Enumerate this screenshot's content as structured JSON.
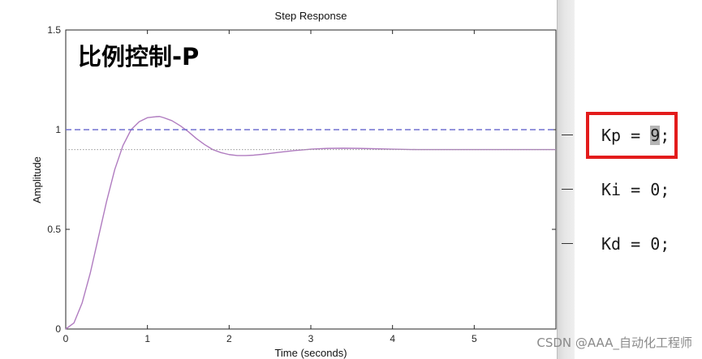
{
  "chart_data": {
    "type": "line",
    "title": "Step Response",
    "overlay_label": "比例控制-P",
    "xlabel": "Time (seconds)",
    "ylabel": "Amplitude",
    "xlim": [
      0,
      6
    ],
    "ylim": [
      0,
      1.5
    ],
    "x_ticks": [
      "0",
      "1",
      "2",
      "3",
      "4",
      "5"
    ],
    "y_ticks": [
      "0",
      "0.5",
      "1",
      "1.5"
    ],
    "grid": false,
    "series": [
      {
        "color": "#b07cc0",
        "style": "solid",
        "x": [
          0,
          0.1,
          0.2,
          0.3,
          0.4,
          0.5,
          0.6,
          0.7,
          0.8,
          0.9,
          1.0,
          1.1,
          1.15,
          1.2,
          1.3,
          1.4,
          1.5,
          1.6,
          1.7,
          1.8,
          1.9,
          2.0,
          2.1,
          2.2,
          2.3,
          2.4,
          2.5,
          2.6,
          2.8,
          3.0,
          3.2,
          3.4,
          3.6,
          3.8,
          4.0,
          4.3,
          4.6,
          5.0,
          5.5,
          6.0
        ],
        "y": [
          0,
          0.03,
          0.13,
          0.28,
          0.46,
          0.64,
          0.8,
          0.92,
          1.0,
          1.04,
          1.06,
          1.065,
          1.066,
          1.06,
          1.045,
          1.02,
          0.99,
          0.955,
          0.925,
          0.9,
          0.885,
          0.875,
          0.87,
          0.87,
          0.872,
          0.876,
          0.881,
          0.886,
          0.895,
          0.902,
          0.906,
          0.907,
          0.906,
          0.904,
          0.902,
          0.9,
          0.9,
          0.9,
          0.9,
          0.9
        ]
      },
      {
        "color": "#7070d0",
        "style": "dashed",
        "x": [
          0,
          6
        ],
        "y": [
          1.0,
          1.0
        ]
      },
      {
        "color": "#9a9a9a",
        "style": "dotted",
        "x": [
          0,
          6
        ],
        "y": [
          0.9,
          0.9
        ]
      }
    ]
  },
  "editor": {
    "lines": [
      {
        "prefix": "Kp = ",
        "selected": "9",
        "suffix": ";"
      },
      {
        "prefix": "Ki = 0;",
        "selected": "",
        "suffix": ""
      },
      {
        "prefix": "Kd = 0;",
        "selected": "",
        "suffix": ""
      }
    ],
    "highlight_color": "#e31b1b"
  },
  "watermark": "CSDN @AAA_自动化工程师"
}
